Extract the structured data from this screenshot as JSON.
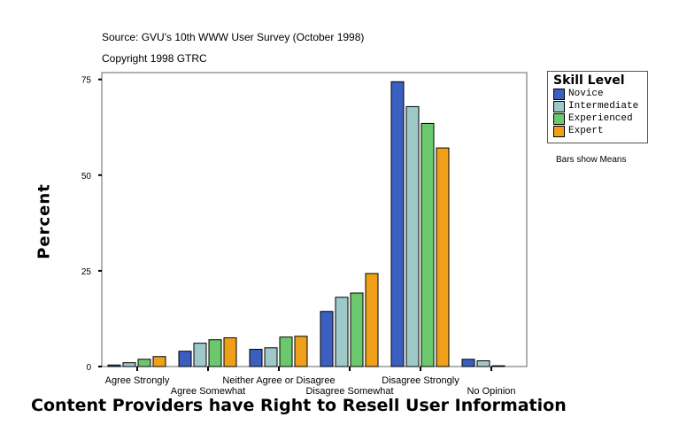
{
  "header": {
    "source": "Source: GVU's 10th WWW User Survey (October 1998)",
    "copyright": "Copyright 1998 GTRC"
  },
  "note": "Bars show Means",
  "chart_data": {
    "type": "bar",
    "title": "",
    "xlabel": "Content Providers have Right to Resell User Information",
    "ylabel": "Percent",
    "ylim": [
      0,
      75
    ],
    "yticks": [
      0,
      25,
      50,
      75
    ],
    "grid": false,
    "legend_title": "Skill Level",
    "legend_position": "right",
    "categories": [
      "Agree Strongly",
      "Agree Somewhat",
      "Neither Agree or Disagree",
      "Disagree Somewhat",
      "Disagree Strongly",
      "No Opinion"
    ],
    "series": [
      {
        "name": "Novice",
        "color": "#3a5fc0",
        "values": [
          0.4,
          4.0,
          4.5,
          14.4,
          74.4,
          1.9
        ]
      },
      {
        "name": "Intermediate",
        "color": "#9fc8c8",
        "values": [
          1.0,
          6.1,
          4.9,
          18.1,
          67.9,
          1.5
        ]
      },
      {
        "name": "Experienced",
        "color": "#6cc86c",
        "values": [
          1.9,
          7.0,
          7.7,
          19.2,
          63.5,
          0.2
        ]
      },
      {
        "name": "Expert",
        "color": "#f0a018",
        "values": [
          2.6,
          7.5,
          7.9,
          24.3,
          57.1,
          0
        ]
      }
    ]
  }
}
